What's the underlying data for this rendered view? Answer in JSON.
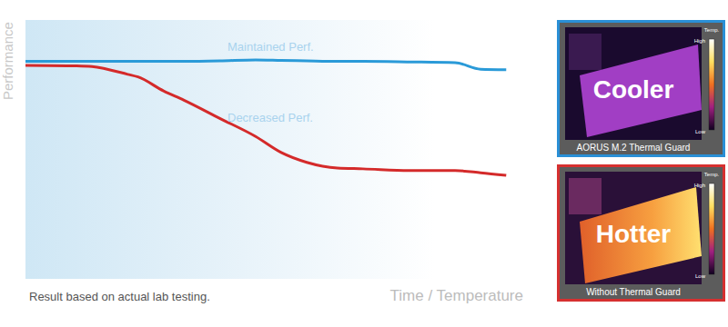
{
  "chart_data": {
    "type": "line",
    "x_label": "Time / Temperature",
    "y_label": "Performance",
    "note": "Result based on actual lab testing.",
    "x": [
      0,
      10,
      13,
      20,
      22,
      27,
      31,
      38,
      45,
      50,
      55,
      61,
      66,
      75,
      84,
      89,
      94
    ],
    "series": [
      {
        "name": "Maintained Perf.",
        "color": "#2a9ad8",
        "values": [
          84,
          84,
          84,
          84,
          84,
          84,
          84,
          84.2,
          84.6,
          84.4,
          84.2,
          84,
          84,
          83.8,
          83.5,
          81,
          80.8
        ]
      },
      {
        "name": "Decreased Perf.",
        "color": "#d42a2a",
        "values": [
          82.5,
          82.3,
          82,
          79,
          78,
          72.6,
          69,
          62,
          55,
          48.8,
          45,
          42.8,
          42.5,
          41.8,
          41.8,
          41,
          40
        ]
      }
    ],
    "xlim": [
      0,
      100
    ],
    "ylim": [
      0,
      100
    ],
    "xticks": [],
    "yticks": [],
    "tick_labels": false,
    "grid": false
  },
  "thermal_images": [
    {
      "label": "Cooler",
      "caption": "AORUS M.2 Thermal Guard",
      "color": "#2a8fd6",
      "color_bar": {
        "title": "Temp.",
        "high": "High",
        "low": "Low"
      }
    },
    {
      "label": "Hotter",
      "caption": "Without Thermal Guard",
      "color": "#d63030",
      "color_bar": {
        "title": "Temp.",
        "high": "High",
        "low": "Low"
      }
    }
  ]
}
